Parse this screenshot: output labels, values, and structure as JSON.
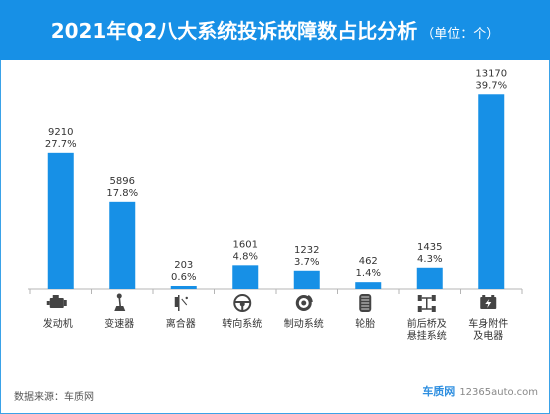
{
  "header": {
    "title": "2021年Q2八大系统投诉故障数占比分析",
    "unit": "（单位：个）"
  },
  "footer": {
    "source": "数据来源：车质网",
    "brand": "车质网",
    "site": "12365auto.com"
  },
  "colors": {
    "header": "#1790e6",
    "bar": "#1790e6",
    "text": "#333333"
  },
  "chart_data": {
    "type": "bar",
    "title": "2021年Q2八大系统投诉故障数占比分析",
    "ylabel": "",
    "ylim": [
      0,
      14000
    ],
    "grid": false,
    "categories": [
      {
        "lines": [
          "发动机"
        ],
        "icon": "engine-icon"
      },
      {
        "lines": [
          "变速器"
        ],
        "icon": "gear-shifter-icon"
      },
      {
        "lines": [
          "离合器"
        ],
        "icon": "clutch-pedal-icon"
      },
      {
        "lines": [
          "转向系统"
        ],
        "icon": "steering-wheel-icon"
      },
      {
        "lines": [
          "制动系统"
        ],
        "icon": "brake-disc-icon"
      },
      {
        "lines": [
          "轮胎"
        ],
        "icon": "tire-icon"
      },
      {
        "lines": [
          "前后桥及",
          "悬挂系统"
        ],
        "icon": "axle-icon"
      },
      {
        "lines": [
          "车身附件",
          "及电器"
        ],
        "icon": "battery-icon"
      }
    ],
    "values": [
      9210,
      5896,
      203,
      1601,
      1232,
      462,
      1435,
      13170
    ],
    "percent_labels": [
      "27.7%",
      "17.8%",
      "0.6%",
      "4.8%",
      "3.7%",
      "1.4%",
      "4.3%",
      "39.7%"
    ]
  }
}
